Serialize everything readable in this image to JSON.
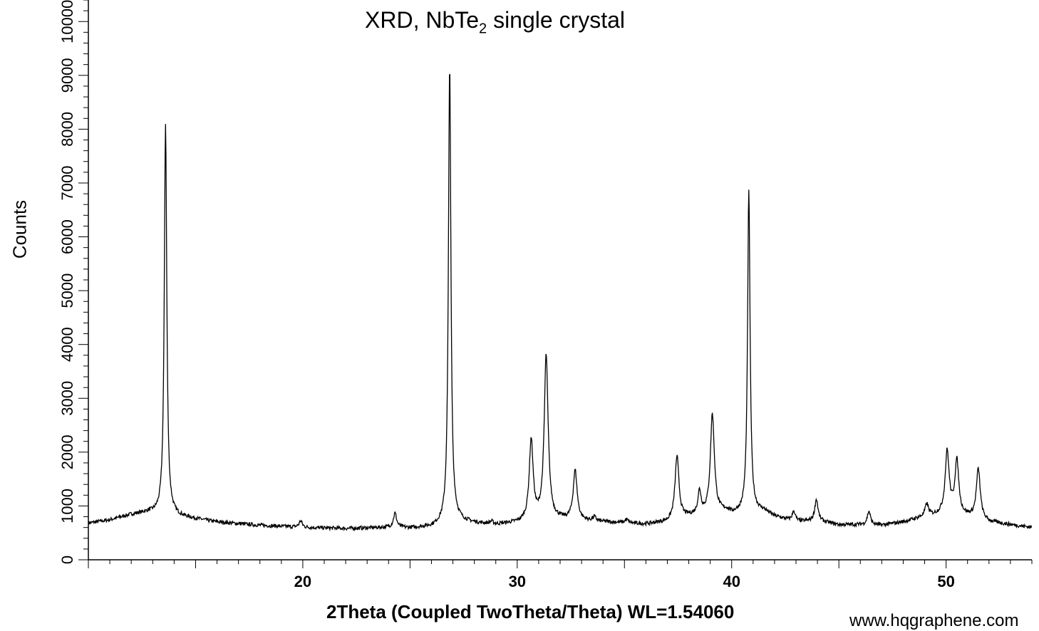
{
  "title_main": "XRD, NbTe",
  "title_sub": "2",
  "title_tail": " single crystal",
  "watermark": "www.hqgraphene.com",
  "chart_data": {
    "type": "line",
    "title": "XRD, NbTe2 single crystal",
    "xlabel": "2Theta (Coupled TwoTheta/Theta) WL=1.54060",
    "ylabel": "Counts",
    "xlim": [
      10,
      54
    ],
    "ylim": [
      0,
      10400
    ],
    "x_ticks": [
      20,
      30,
      40,
      50
    ],
    "y_ticks": [
      0,
      1000,
      2000,
      3000,
      4000,
      5000,
      6000,
      7000,
      8000,
      9000,
      10000
    ],
    "grid": false,
    "baseline": [
      [
        10,
        680
      ],
      [
        11,
        740
      ],
      [
        12,
        840
      ],
      [
        12.8,
        880
      ],
      [
        14,
        820
      ],
      [
        15,
        760
      ],
      [
        16,
        700
      ],
      [
        18,
        640
      ],
      [
        20,
        600
      ],
      [
        22,
        580
      ],
      [
        24,
        600
      ],
      [
        25,
        590
      ],
      [
        26,
        610
      ],
      [
        27.2,
        720
      ],
      [
        28,
        680
      ],
      [
        29,
        650
      ],
      [
        30,
        680
      ],
      [
        32,
        740
      ],
      [
        34,
        700
      ],
      [
        35,
        680
      ],
      [
        36,
        660
      ],
      [
        37,
        700
      ],
      [
        38,
        800
      ],
      [
        39.8,
        900
      ],
      [
        40,
        850
      ],
      [
        41.5,
        900
      ],
      [
        42,
        800
      ],
      [
        43,
        700
      ],
      [
        44,
        720
      ],
      [
        45,
        650
      ],
      [
        46,
        650
      ],
      [
        47,
        640
      ],
      [
        48,
        700
      ],
      [
        49,
        800
      ],
      [
        50,
        850
      ],
      [
        51,
        800
      ],
      [
        52,
        700
      ],
      [
        53,
        650
      ],
      [
        54,
        600
      ]
    ],
    "peaks": [
      {
        "x": 13.6,
        "y": 8100
      },
      {
        "x": 19.9,
        "y": 720
      },
      {
        "x": 24.3,
        "y": 860
      },
      {
        "x": 26.85,
        "y": 9200
      },
      {
        "x": 28.8,
        "y": 700
      },
      {
        "x": 30.65,
        "y": 2200
      },
      {
        "x": 31.35,
        "y": 3780
      },
      {
        "x": 32.7,
        "y": 1650
      },
      {
        "x": 33.6,
        "y": 780
      },
      {
        "x": 35.1,
        "y": 740
      },
      {
        "x": 37.45,
        "y": 1920
      },
      {
        "x": 38.5,
        "y": 1250
      },
      {
        "x": 39.1,
        "y": 2700
      },
      {
        "x": 40.8,
        "y": 6850
      },
      {
        "x": 42.9,
        "y": 900
      },
      {
        "x": 43.95,
        "y": 1120
      },
      {
        "x": 46.4,
        "y": 900
      },
      {
        "x": 49.1,
        "y": 1030
      },
      {
        "x": 50.05,
        "y": 2000
      },
      {
        "x": 50.5,
        "y": 1820
      },
      {
        "x": 51.5,
        "y": 1680
      }
    ]
  }
}
